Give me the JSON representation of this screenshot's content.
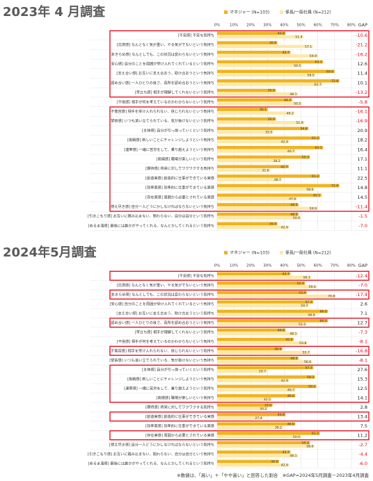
{
  "chart_data": [
    {
      "type": "hbar",
      "title": "2023年 4 月調査",
      "categories": [
        "[不安感] 不安な気持ち",
        "[沈滞感] なんとなく気が重い、やる気がでないという気持ち",
        "[あきらめ感] なんとしても、この状況は変わらないという気持ち",
        "[安心感] 自分のことを周囲が受け入れてくれているという気持ち",
        "[支え合い感] お互いに支え合おう、助け合おうという気持ち",
        "[認め合い感] 一人ひとりの良さ、長所を認め合おうという気持ち",
        "[苛立ち感] 相手が理解してくれないという気持ち",
        "[不信感] 相手が何を考えているのかわからないという気持ち",
        "[不寛容感] 相手を受け入れられない、信じられないという気持ち",
        "[緊張感] いつも追い立てられている、気が抜けないという気持ち",
        "[主体感] 自分が引っ張っていくという気持ち",
        "[挑戦感] 新しいことにチャレンジしようという気持ち",
        "[連帯感] 一緒に苦労をして、乗り越えようという気持ち",
        "[高揚感] 職場が楽しいという気持ち",
        "[期待感] 将来に対してワクワクする気持ち",
        "[創造実感] 創造的に仕事ができている実感",
        "[効率実感] 効率的に仕事ができている実感",
        "[存在実感] 周囲から必要とされている実感",
        "[燃え尽き感] 自分一人どうにかしなければならないという気持ち",
        "[引きこもり感] お互いに踏み込まない、関わらない、自分は自分という気持ち",
        "[ぬるま湯感] 最後には誰かがやってくれる、なんとかしてくれるという気持ち"
      ],
      "series": [
        {
          "name": "マネジャー (N=103)",
          "color": "#f2b21b",
          "values": [
            40.8,
            35.9,
            43.7,
            63.1,
            69.9,
            72.8,
            35.0,
            44.7,
            30.1,
            35.0,
            54.4,
            61.2,
            63.1,
            55.3,
            42.7,
            61.2,
            72.8,
            62.1,
            48.5,
            48.5,
            35.9
          ],
          "value_labels": [
            "40.8",
            "35.9",
            "43.7",
            "63.1",
            "69.9",
            "72.8",
            "35.0",
            "44.7",
            "30.1",
            "35.0",
            "54.4",
            "61.2",
            "63.1",
            "55.3",
            "42.7",
            "61.2",
            "72.8",
            "62.1",
            "48.5",
            "48.5",
            "35.9"
          ]
        },
        {
          "name": "係長/一般社員 (N=212)",
          "color": "#fde9a6",
          "values": [
            51.4,
            57.1,
            59.9,
            50.5,
            58.5,
            62.7,
            48.1,
            50.5,
            46.2,
            51.9,
            33.5,
            42.9,
            46.7,
            38.2,
            31.6,
            38.7,
            58.0,
            47.6,
            59.9,
            50.0,
            42.9
          ],
          "value_labels": [
            "51.4",
            "57.1",
            "59.9",
            "50.5",
            "58.5",
            "62.7",
            "48.1",
            "50.5",
            "46.2",
            "51.9",
            "33.5",
            "42.9",
            "46.7",
            "38.2",
            "31.6",
            "38.7",
            "58.0",
            "47.6",
            "59.9",
            "50.0",
            "42.9"
          ]
        }
      ],
      "gap": {
        "label": "GAP",
        "values": [
          -10.6,
          -21.2,
          -16.2,
          12.6,
          11.4,
          10.1,
          -13.2,
          -5.8,
          -16.1,
          -16.9,
          20.9,
          18.2,
          16.4,
          17.1,
          11.1,
          22.5,
          14.8,
          14.5,
          -11.4,
          -1.5,
          -7.0
        ],
        "value_labels": [
          "-10.6",
          "-21.2",
          "-16.2",
          "12.6",
          "11.4",
          "10.1",
          "-13.2",
          "-5.8",
          "-16.1",
          "-16.9",
          "20.9",
          "18.2",
          "16.4",
          "17.1",
          "11.1",
          "22.5",
          "14.8",
          "14.5",
          "-11.4",
          "-1.5",
          "-7.0"
        ],
        "negative_color": "#e60012"
      },
      "xlim": [
        0,
        80
      ],
      "xticks": [
        {
          "value": 0,
          "label": "0%"
        },
        {
          "value": 10,
          "label": "10%"
        },
        {
          "value": 20,
          "label": "20%"
        },
        {
          "value": 30,
          "label": "30%"
        },
        {
          "value": 40,
          "label": "40%"
        },
        {
          "value": 50,
          "label": "50%"
        },
        {
          "value": 60,
          "label": "60%"
        },
        {
          "value": 70,
          "label": "70%"
        },
        {
          "value": 80,
          "label": "80%"
        }
      ],
      "grid": true,
      "highlight_rows": [
        [
          0,
          6
        ],
        [
          8,
          18
        ]
      ],
      "highlight_color": "#e60012"
    },
    {
      "type": "hbar",
      "title": "2024年5月調査",
      "categories": [
        "[不安感] 不安な気持ち",
        "[沈滞感] なんとなく気が重い、やる気がでないという気持ち",
        "[あきらめ感] なんとしても、この状況は変わらないという気持ち",
        "[安心感] 自分のことを周囲が受け入れてくれているという気持ち",
        "[支え合い感] お互いに支え合おう、助け合おうという気持ち",
        "[認め合い感] 一人ひとりの良さ、長所を認め合おうという気持ち",
        "[苛立ち感] 相手が理解してくれないという気持ち",
        "[不信感] 相手が何を考えているのかわからないという気持ち",
        "[不寛容感] 相手を受け入れられない、信じられないという気持ち",
        "[緊張感] いつも追い立てられている、気が抜けないという気持ち",
        "[主体感] 自分が引っ張っていくという気持ち",
        "[挑戦感] 新しいことにチャレンジしようという気持ち",
        "[連帯感] 一緒に苦労をして、乗り越えようという気持ち",
        "[高揚感] 職場が楽しいという気持ち",
        "[期待感] 将来に対してワクワクする気持ち",
        "[創造実感] 創造的に仕事ができている実感",
        "[効率実感] 効率的に仕事ができている実感",
        "[存在実感] 周囲から必要とされている実感",
        "[燃え尽き感] 自分一人どうにかしなければならないという気持ち",
        "[引きこもり感] お互いに踏み込まない、関わらない、自分は自分という気持ち",
        "[ぬるま湯感] 最後には誰かがやってくれる、なんとかしてくれるという気持ち"
      ],
      "series": [
        {
          "name": "マネジャー (N=103)",
          "color": "#f2b21b",
          "values": [
            43.7,
            52.4,
            53.4,
            57.3,
            66.0,
            66.0,
            40.8,
            45.6,
            38.9,
            48.5,
            57.3,
            58.3,
            59.2,
            46.6,
            33.0,
            40.8,
            46.6,
            61.2,
            55.3,
            43.7,
            36.9
          ],
          "value_labels": [
            "43.7",
            "52.4",
            "53.4",
            "57.3",
            "66.0",
            "66.0",
            "40.8",
            "45.6",
            "38.9",
            "48.5",
            "57.3",
            "58.3",
            "59.2",
            "46.6",
            "33.0",
            "40.8",
            "46.6",
            "61.2",
            "55.3",
            "43.7",
            "36.9"
          ]
        },
        {
          "name": "係長/一般社員 (N=212)",
          "color": "#fde9a6",
          "values": [
            56.1,
            59.4,
            70.8,
            54.7,
            58.9,
            53.3,
            48.1,
            53.8,
            55.7,
            56.6,
            29.7,
            42.9,
            46.7,
            32.5,
            30.2,
            27.4,
            39.2,
            50.0,
            58.0,
            48.1,
            42.9
          ],
          "value_labels": [
            "56.1",
            "59.4",
            "70.8",
            "54.7",
            "58.9",
            "53.3",
            "48.1",
            "53.8",
            "55.7",
            "56.6",
            "29.7",
            "42.9",
            "46.7",
            "32.5",
            "30.2",
            "27.4",
            "39.2",
            "50.0",
            "58.0",
            "48.1",
            "42.9"
          ]
        }
      ],
      "gap": {
        "label": "GAP",
        "values": [
          -12.4,
          -7.0,
          -17.4,
          2.6,
          7.1,
          12.7,
          -7.3,
          -8.1,
          -16.8,
          -8.1,
          27.6,
          15.3,
          12.5,
          14.1,
          2.8,
          13.4,
          7.5,
          11.2,
          -2.7,
          -4.4,
          -6.0
        ],
        "value_labels": [
          "-12.4",
          "-7.0",
          "-17.4",
          "2.6",
          "7.1",
          "12.7",
          "-7.3",
          "-8.1",
          "-16.8",
          "-8.1",
          "27.6",
          "15.3",
          "12.5",
          "14.1",
          "2.8",
          "13.4",
          "7.5",
          "11.2",
          "-2.7",
          "-4.4",
          "-6.0"
        ],
        "negative_color": "#e60012"
      },
      "xlim": [
        0,
        80
      ],
      "xticks": [
        {
          "value": 0,
          "label": "0%"
        },
        {
          "value": 10,
          "label": "10%"
        },
        {
          "value": 20,
          "label": "20%"
        },
        {
          "value": 30,
          "label": "30%"
        },
        {
          "value": 40,
          "label": "40%"
        },
        {
          "value": 50,
          "label": "50%"
        },
        {
          "value": 60,
          "label": "60%"
        },
        {
          "value": 70,
          "label": "70%"
        },
        {
          "value": 80,
          "label": "80%"
        }
      ],
      "grid": true,
      "highlight_rows": [
        [
          0,
          0
        ],
        [
          2,
          2
        ],
        [
          5,
          5
        ],
        [
          8,
          8
        ],
        [
          10,
          13
        ],
        [
          15,
          15
        ],
        [
          17,
          17
        ]
      ],
      "highlight_color": "#e60012"
    }
  ],
  "footnote": "※数値は、「高い」＋「やや高い」と回答した割合　※GAP=2024年5月調査－2023年4月調査"
}
